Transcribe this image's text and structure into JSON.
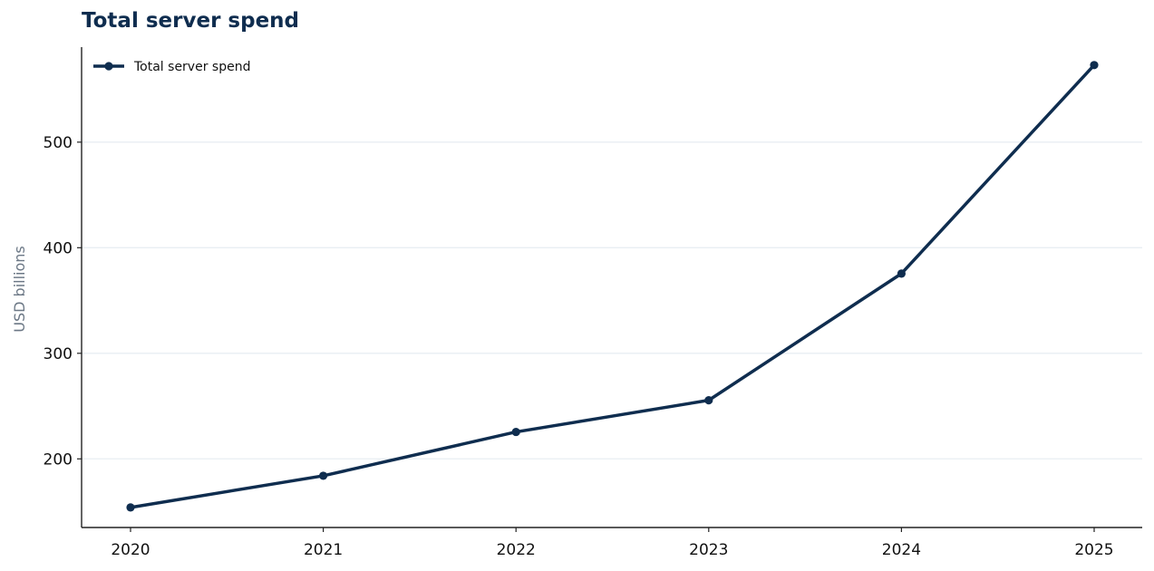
{
  "chart_data": {
    "type": "line",
    "title": "Total server spend",
    "xlabel": "",
    "ylabel": "USD billions",
    "x": [
      "2020",
      "2021",
      "2022",
      "2023",
      "2024",
      "2025"
    ],
    "series": [
      {
        "name": "Total server spend",
        "values": [
          154,
          184,
          225.5,
          255.5,
          375.5,
          573
        ],
        "color": "#0f2d4f"
      }
    ],
    "y_ticks": [
      200,
      300,
      400,
      500
    ],
    "ylim": [
      135,
      590
    ],
    "grid": "horizontal",
    "grid_color": "#e8eef3",
    "legend_position": "top-left"
  }
}
